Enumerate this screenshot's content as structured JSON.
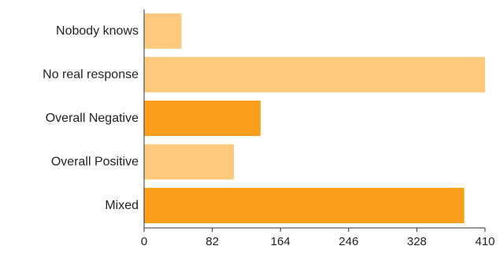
{
  "chart_data": {
    "type": "bar",
    "orientation": "horizontal",
    "categories": [
      "Nobody knows",
      "No real response",
      "Overall Negative",
      "Overall Positive",
      "Mixed"
    ],
    "values": [
      45,
      410,
      140,
      108,
      385
    ],
    "bar_colors": [
      "#FDC97C",
      "#FDC97C",
      "#F99D1C",
      "#FDC97C",
      "#F99D1C"
    ],
    "xlim": [
      0,
      410
    ],
    "xticks": [
      "0",
      "82",
      "164",
      "246",
      "328",
      "410"
    ],
    "title": "",
    "xlabel": "",
    "ylabel": "",
    "grid": false,
    "legend": "none"
  }
}
